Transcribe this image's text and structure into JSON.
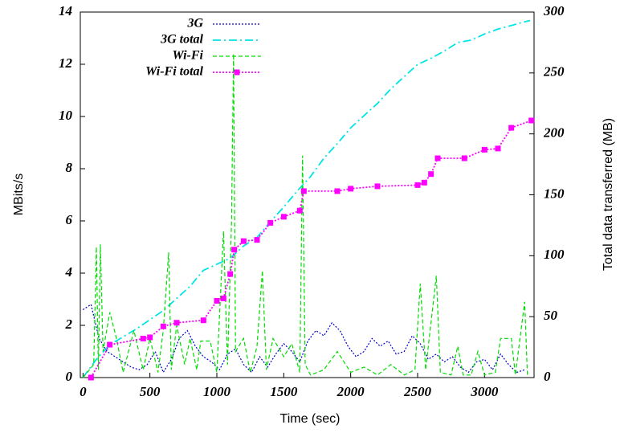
{
  "chart_data": {
    "type": "line",
    "xlabel": "Time (sec)",
    "ylabel": "MBits/s",
    "y2label": "Total data transferred (MB)",
    "xlim": [
      -20,
      3370
    ],
    "xticks": [
      0,
      500,
      1000,
      1500,
      2000,
      2500,
      3000
    ],
    "ylim": [
      0,
      14
    ],
    "yticks": [
      0,
      2,
      4,
      6,
      8,
      10,
      12,
      14
    ],
    "y2lim": [
      0,
      300
    ],
    "y2ticks": [
      0,
      50,
      100,
      150,
      200,
      250,
      300
    ],
    "legend": "top-left",
    "series": [
      {
        "name": "3G",
        "color": "#0000cc",
        "x": [
          0,
          60,
          120,
          180,
          240,
          300,
          360,
          420,
          480,
          540,
          600,
          660,
          720,
          780,
          840,
          900,
          960,
          1020,
          1080,
          1140,
          1200,
          1260,
          1320,
          1380,
          1440,
          1500,
          1560,
          1620,
          1680,
          1740,
          1800,
          1860,
          1920,
          1980,
          2040,
          2100,
          2160,
          2220,
          2280,
          2340,
          2400,
          2460,
          2520,
          2580,
          2640,
          2700,
          2760,
          2820,
          2880,
          2940,
          3000,
          3060,
          3120,
          3180,
          3240,
          3300
        ],
        "values": [
          2.6,
          2.8,
          1.5,
          1.0,
          0.8,
          0.6,
          0.4,
          0.3,
          0.5,
          1.0,
          0.2,
          0.7,
          1.5,
          1.8,
          1.2,
          0.8,
          0.6,
          0.3,
          0.9,
          1.1,
          0.5,
          0.2,
          0.8,
          0.4,
          0.9,
          1.3,
          1.0,
          0.6,
          1.4,
          1.8,
          1.6,
          2.1,
          1.8,
          1.2,
          0.8,
          1.0,
          1.5,
          1.2,
          1.4,
          0.9,
          1.0,
          1.6,
          1.3,
          0.7,
          0.9,
          0.6,
          0.8,
          0.4,
          0.2,
          0.6,
          0.7,
          0.3,
          0.9,
          0.5,
          0.2,
          0.3
        ]
      },
      {
        "name": "3G total",
        "color": "#00e5e5",
        "axis": "y2",
        "x": [
          0,
          100,
          200,
          400,
          600,
          800,
          900,
          1000,
          1100,
          1200,
          1300,
          1400,
          1500,
          1600,
          1700,
          1800,
          1900,
          2000,
          2100,
          2200,
          2300,
          2400,
          2500,
          2600,
          2700,
          2800,
          2900,
          3000,
          3100,
          3200,
          3300,
          3340
        ],
        "values": [
          0,
          15,
          27,
          40,
          55,
          75,
          88,
          93,
          98,
          108,
          115,
          128,
          140,
          153,
          165,
          180,
          192,
          205,
          215,
          225,
          237,
          247,
          257,
          262,
          268,
          275,
          277,
          282,
          286,
          289,
          292,
          293
        ]
      },
      {
        "name": "Wi-Fi",
        "color": "#00dd00",
        "x": [
          0,
          80,
          100,
          115,
          130,
          150,
          200,
          250,
          300,
          380,
          450,
          500,
          560,
          600,
          640,
          660,
          700,
          760,
          800,
          850,
          880,
          950,
          1000,
          1050,
          1080,
          1110,
          1125,
          1140,
          1200,
          1250,
          1300,
          1340,
          1370,
          1420,
          1500,
          1560,
          1620,
          1640,
          1660,
          1700,
          1800,
          1900,
          2000,
          2100,
          2200,
          2300,
          2400,
          2480,
          2520,
          2560,
          2640,
          2670,
          2750,
          2800,
          2840,
          2900,
          2950,
          3000,
          3080,
          3120,
          3200,
          3230,
          3300,
          3320
        ],
        "values": [
          0,
          0.5,
          5.0,
          0.3,
          5.1,
          1.0,
          2.5,
          1.5,
          0.2,
          1.8,
          0.3,
          1.5,
          0.2,
          1.8,
          4.8,
          0.3,
          2.0,
          0.5,
          1.5,
          0.3,
          1.4,
          1.4,
          0.2,
          5.6,
          0.5,
          6.0,
          12.4,
          1.0,
          1.5,
          0.2,
          1.2,
          4.1,
          0.3,
          1.5,
          0.8,
          1.3,
          0.2,
          8.5,
          0.5,
          0.1,
          0.3,
          1.0,
          0.2,
          0.4,
          0.1,
          0.5,
          0.1,
          0.3,
          3.6,
          0.3,
          3.9,
          0.2,
          0.1,
          1.2,
          0.1,
          0.1,
          1.0,
          0.1,
          0.2,
          1.5,
          1.5,
          0.1,
          2.9,
          0.1
        ]
      },
      {
        "name": "Wi-Fi total",
        "color": "#ff00ff",
        "axis": "y2",
        "marker": "square",
        "x": [
          60,
          200,
          450,
          500,
          600,
          700,
          900,
          1000,
          1050,
          1100,
          1130,
          1200,
          1300,
          1400,
          1500,
          1620,
          1650,
          1900,
          2000,
          2200,
          2500,
          2550,
          2600,
          2650,
          2850,
          3000,
          3100,
          3200,
          3350
        ],
        "values": [
          0,
          27,
          32,
          33,
          42,
          45,
          47,
          63,
          65,
          85,
          105,
          112,
          113,
          127,
          132,
          137,
          153,
          153,
          155,
          157,
          158,
          160,
          167,
          180,
          180,
          187,
          188,
          205,
          211
        ]
      }
    ]
  }
}
